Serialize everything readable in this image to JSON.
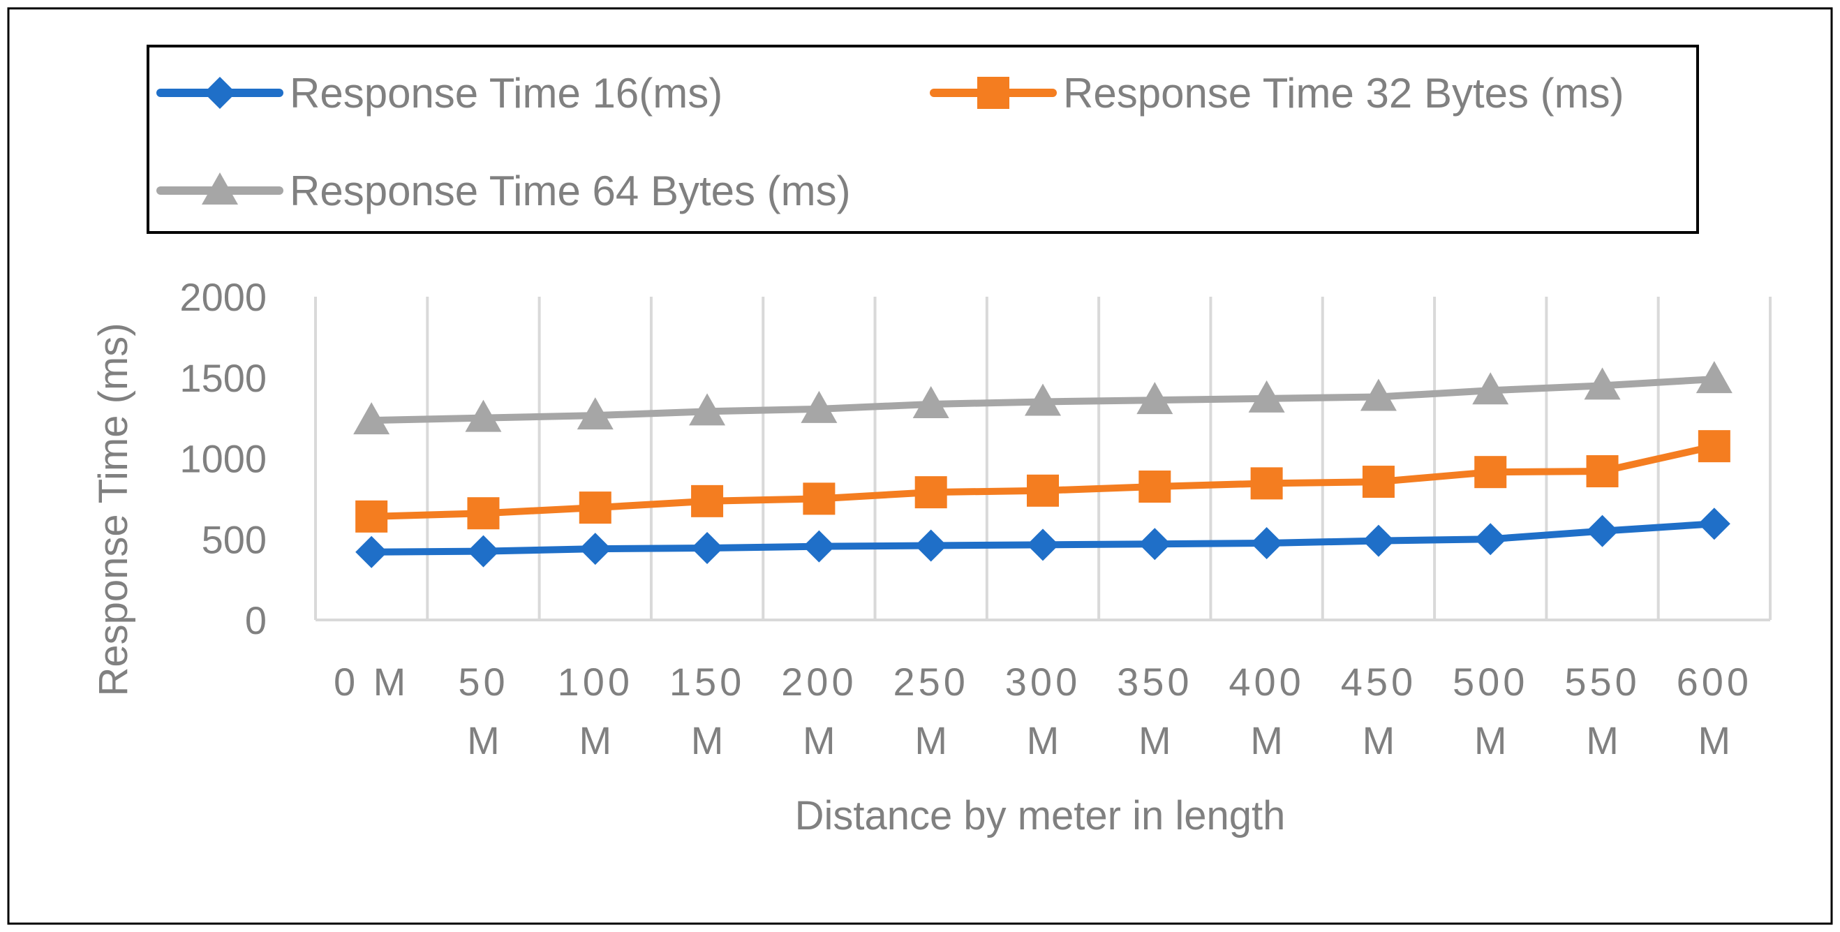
{
  "chart_data": {
    "type": "line",
    "title": "",
    "xlabel": "Distance by meter in length",
    "ylabel": "Response Time (ms)",
    "ylim": [
      0,
      2000
    ],
    "yticks": [
      "0",
      "500",
      "1000",
      "1500",
      "2000"
    ],
    "grid": true,
    "legend": "top",
    "categories": [
      "0 M",
      "50 M",
      "100 M",
      "150 M",
      "200 M",
      "250 M",
      "300 M",
      "350 M",
      "400 M",
      "450 M",
      "500 M",
      "550 M",
      "600 M"
    ],
    "category_lines": [
      [
        "0  M",
        ""
      ],
      [
        "50",
        "M"
      ],
      [
        "100",
        "M"
      ],
      [
        "150",
        "M"
      ],
      [
        "200",
        "M"
      ],
      [
        "250",
        "M"
      ],
      [
        "300",
        "M"
      ],
      [
        "350",
        "M"
      ],
      [
        "400",
        "M"
      ],
      [
        "450",
        "M"
      ],
      [
        "500",
        "M"
      ],
      [
        "550",
        "M"
      ],
      [
        "600",
        "M"
      ]
    ],
    "series": [
      {
        "name": "Response Time 16(ms)",
        "color": "#1f6fc8",
        "marker": "diamond",
        "values": [
          420,
          425,
          440,
          445,
          455,
          460,
          465,
          470,
          475,
          490,
          500,
          550,
          595
        ]
      },
      {
        "name": "Response Time 32 Bytes (ms)",
        "color": "#f47d20",
        "marker": "square",
        "values": [
          640,
          660,
          695,
          735,
          750,
          790,
          800,
          825,
          845,
          855,
          915,
          920,
          1075
        ]
      },
      {
        "name": "Response Time 64 Bytes (ms)",
        "color": "#a6a6a6",
        "marker": "triangle",
        "values": [
          1235,
          1250,
          1265,
          1290,
          1305,
          1335,
          1350,
          1360,
          1370,
          1380,
          1420,
          1450,
          1490
        ]
      }
    ]
  }
}
